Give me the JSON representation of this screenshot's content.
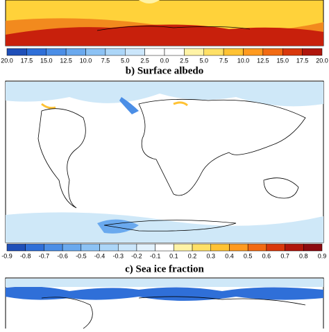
{
  "colorbar_1": {
    "labels": [
      "20.0",
      "17.5",
      "15.0",
      "12.5",
      "10.0",
      "7.5",
      "5.0",
      "2.5",
      "0.0",
      "2.5",
      "5.0",
      "7.5",
      "10.0",
      "12.5",
      "15.0",
      "17.5",
      "20.0"
    ],
    "colors": [
      "#1f4fb8",
      "#2f6fd8",
      "#4b8ee6",
      "#6aa9ee",
      "#8cc2f4",
      "#acd6f8",
      "#cbe6fb",
      "#ffffff",
      "#ffffff",
      "#fff3a6",
      "#ffe066",
      "#ffc233",
      "#ff9a1f",
      "#f26a12",
      "#d9380c",
      "#b0160c"
    ]
  },
  "panel_b": {
    "title": "b) Surface albedo"
  },
  "colorbar_2": {
    "labels": [
      "-0.9",
      "-0.8",
      "-0.7",
      "-0.6",
      "-0.5",
      "-0.4",
      "-0.3",
      "-0.2",
      "-0.1",
      "0.1",
      "0.2",
      "0.3",
      "0.4",
      "0.5",
      "0.6",
      "0.7",
      "0.8",
      "0.9"
    ],
    "colors": [
      "#1f4fb8",
      "#2f6fd8",
      "#4b8ee6",
      "#6aa9ee",
      "#8cc2f4",
      "#acd6f8",
      "#cbe6fb",
      "#e3f2fd",
      "#ffffff",
      "#fff3a6",
      "#ffe066",
      "#ffc233",
      "#ff9a1f",
      "#f26a12",
      "#d9380c",
      "#b0160c",
      "#8c0a10"
    ]
  },
  "panel_c": {
    "title": "c) Sea ice fraction"
  }
}
